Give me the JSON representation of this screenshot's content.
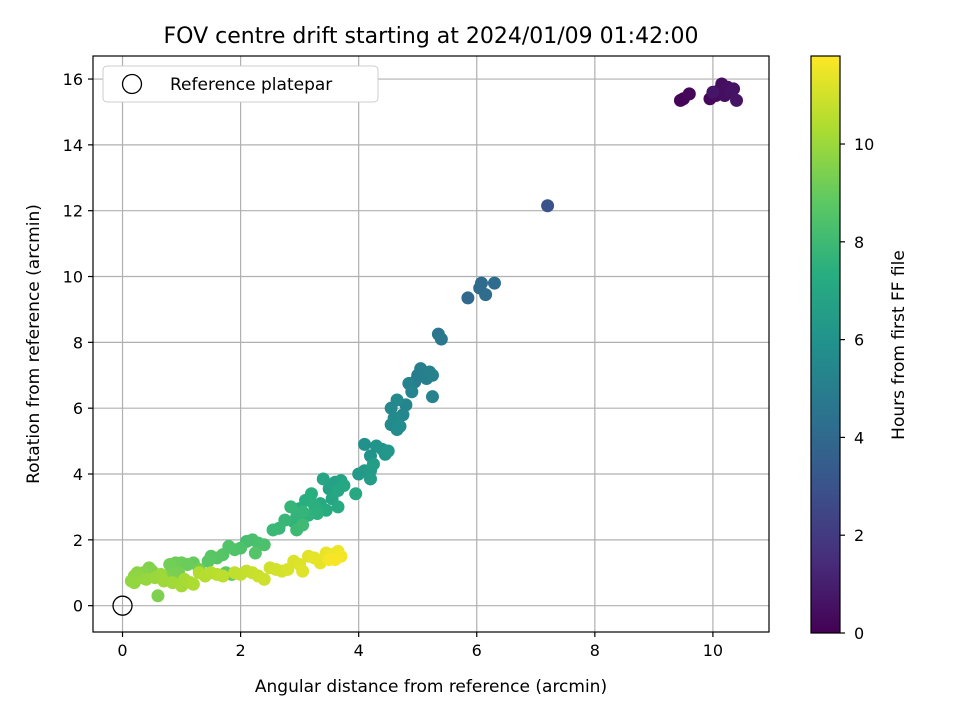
{
  "chart_data": {
    "type": "scatter",
    "title": "FOV centre drift starting at 2024/01/09 01:42:00",
    "xlabel": "Angular distance from reference (arcmin)",
    "ylabel": "Rotation from reference (arcmin)",
    "xlim": [
      -0.5,
      10.95
    ],
    "ylim": [
      -0.8,
      16.7
    ],
    "xticks": [
      0,
      2,
      4,
      6,
      8,
      10
    ],
    "yticks": [
      0,
      2,
      4,
      6,
      8,
      10,
      12,
      14,
      16
    ],
    "grid": true,
    "legend": {
      "position": "top-left",
      "entries": [
        "Reference platepar"
      ]
    },
    "reference_point": {
      "x": 0,
      "y": 0,
      "label": "Reference platepar",
      "marker": "hollow-circle"
    },
    "colorbar": {
      "label": "Hours from first FF file",
      "colormap": "viridis",
      "range": [
        0,
        11.8
      ],
      "ticks": [
        0,
        2,
        4,
        6,
        8,
        10
      ]
    },
    "points": [
      {
        "x": 9.45,
        "y": 15.35,
        "h": 0.1
      },
      {
        "x": 9.5,
        "y": 15.4,
        "h": 0.15
      },
      {
        "x": 9.6,
        "y": 15.55,
        "h": 0.2
      },
      {
        "x": 9.95,
        "y": 15.4,
        "h": 0.25
      },
      {
        "x": 10.05,
        "y": 15.5,
        "h": 0.3
      },
      {
        "x": 10.1,
        "y": 15.65,
        "h": 0.35
      },
      {
        "x": 10.15,
        "y": 15.85,
        "h": 0.4
      },
      {
        "x": 10.2,
        "y": 15.5,
        "h": 0.45
      },
      {
        "x": 10.25,
        "y": 15.75,
        "h": 0.5
      },
      {
        "x": 10.3,
        "y": 15.6,
        "h": 0.55
      },
      {
        "x": 10.35,
        "y": 15.7,
        "h": 0.6
      },
      {
        "x": 10.4,
        "y": 15.35,
        "h": 0.65
      },
      {
        "x": 10.0,
        "y": 15.6,
        "h": 0.7
      },
      {
        "x": 7.2,
        "y": 12.15,
        "h": 3.0
      },
      {
        "x": 5.85,
        "y": 9.35,
        "h": 4.0
      },
      {
        "x": 6.05,
        "y": 9.65,
        "h": 4.05
      },
      {
        "x": 6.08,
        "y": 9.8,
        "h": 4.1
      },
      {
        "x": 6.15,
        "y": 9.45,
        "h": 4.15
      },
      {
        "x": 6.3,
        "y": 9.8,
        "h": 4.2
      },
      {
        "x": 5.35,
        "y": 8.25,
        "h": 4.6
      },
      {
        "x": 5.4,
        "y": 8.1,
        "h": 4.65
      },
      {
        "x": 4.95,
        "y": 6.8,
        "h": 4.9
      },
      {
        "x": 5.0,
        "y": 7.0,
        "h": 4.95
      },
      {
        "x": 5.05,
        "y": 7.2,
        "h": 5.0
      },
      {
        "x": 5.15,
        "y": 6.9,
        "h": 5.05
      },
      {
        "x": 5.2,
        "y": 7.1,
        "h": 5.1
      },
      {
        "x": 5.25,
        "y": 7.0,
        "h": 5.15
      },
      {
        "x": 5.25,
        "y": 6.35,
        "h": 5.2
      },
      {
        "x": 4.85,
        "y": 6.75,
        "h": 5.25
      },
      {
        "x": 4.9,
        "y": 6.5,
        "h": 5.3
      },
      {
        "x": 4.8,
        "y": 6.1,
        "h": 5.35
      },
      {
        "x": 4.75,
        "y": 5.8,
        "h": 5.4
      },
      {
        "x": 4.55,
        "y": 6.0,
        "h": 5.45
      },
      {
        "x": 4.65,
        "y": 6.25,
        "h": 5.5
      },
      {
        "x": 4.55,
        "y": 5.5,
        "h": 5.55
      },
      {
        "x": 4.6,
        "y": 5.7,
        "h": 5.6
      },
      {
        "x": 4.65,
        "y": 5.35,
        "h": 5.65
      },
      {
        "x": 4.7,
        "y": 5.45,
        "h": 5.7
      },
      {
        "x": 4.1,
        "y": 4.9,
        "h": 5.9
      },
      {
        "x": 4.2,
        "y": 4.55,
        "h": 6.0
      },
      {
        "x": 4.3,
        "y": 4.85,
        "h": 6.05
      },
      {
        "x": 4.4,
        "y": 4.75,
        "h": 6.1
      },
      {
        "x": 4.45,
        "y": 4.6,
        "h": 6.15
      },
      {
        "x": 4.5,
        "y": 4.7,
        "h": 6.2
      },
      {
        "x": 4.0,
        "y": 4.0,
        "h": 6.3
      },
      {
        "x": 4.1,
        "y": 4.1,
        "h": 6.35
      },
      {
        "x": 4.2,
        "y": 4.1,
        "h": 6.4
      },
      {
        "x": 4.2,
        "y": 3.85,
        "h": 6.45
      },
      {
        "x": 4.25,
        "y": 4.3,
        "h": 6.5
      },
      {
        "x": 3.5,
        "y": 3.55,
        "h": 6.7
      },
      {
        "x": 3.6,
        "y": 3.75,
        "h": 6.75
      },
      {
        "x": 3.7,
        "y": 3.8,
        "h": 6.8
      },
      {
        "x": 3.4,
        "y": 3.85,
        "h": 6.85
      },
      {
        "x": 3.55,
        "y": 3.25,
        "h": 6.9
      },
      {
        "x": 3.65,
        "y": 3.5,
        "h": 6.95
      },
      {
        "x": 3.75,
        "y": 3.65,
        "h": 7.0
      },
      {
        "x": 3.95,
        "y": 3.4,
        "h": 7.05
      },
      {
        "x": 3.65,
        "y": 3.0,
        "h": 7.1
      },
      {
        "x": 3.35,
        "y": 3.1,
        "h": 7.15
      },
      {
        "x": 3.45,
        "y": 2.9,
        "h": 7.2
      },
      {
        "x": 3.0,
        "y": 2.95,
        "h": 7.3
      },
      {
        "x": 3.1,
        "y": 3.2,
        "h": 7.35
      },
      {
        "x": 3.2,
        "y": 3.4,
        "h": 7.4
      },
      {
        "x": 3.25,
        "y": 3.05,
        "h": 7.45
      },
      {
        "x": 3.3,
        "y": 2.8,
        "h": 7.5
      },
      {
        "x": 3.15,
        "y": 2.75,
        "h": 7.55
      },
      {
        "x": 2.9,
        "y": 2.55,
        "h": 7.6
      },
      {
        "x": 2.95,
        "y": 2.7,
        "h": 7.65
      },
      {
        "x": 3.05,
        "y": 2.85,
        "h": 7.7
      },
      {
        "x": 2.85,
        "y": 3.0,
        "h": 7.75
      },
      {
        "x": 2.75,
        "y": 2.6,
        "h": 7.8
      },
      {
        "x": 2.65,
        "y": 2.35,
        "h": 7.85
      },
      {
        "x": 2.55,
        "y": 2.3,
        "h": 7.9
      },
      {
        "x": 2.95,
        "y": 2.3,
        "h": 7.95
      },
      {
        "x": 3.05,
        "y": 2.45,
        "h": 8.0
      },
      {
        "x": 2.1,
        "y": 1.95,
        "h": 8.2
      },
      {
        "x": 2.2,
        "y": 2.0,
        "h": 8.25
      },
      {
        "x": 2.3,
        "y": 1.9,
        "h": 8.3
      },
      {
        "x": 2.4,
        "y": 1.85,
        "h": 8.35
      },
      {
        "x": 2.0,
        "y": 1.75,
        "h": 8.4
      },
      {
        "x": 1.9,
        "y": 1.7,
        "h": 8.45
      },
      {
        "x": 1.8,
        "y": 1.8,
        "h": 8.5
      },
      {
        "x": 2.25,
        "y": 1.6,
        "h": 8.55
      },
      {
        "x": 1.7,
        "y": 1.55,
        "h": 8.6
      },
      {
        "x": 1.6,
        "y": 1.45,
        "h": 8.65
      },
      {
        "x": 1.5,
        "y": 1.5,
        "h": 8.7
      },
      {
        "x": 1.45,
        "y": 1.35,
        "h": 8.75
      },
      {
        "x": 1.75,
        "y": 1.0,
        "h": 8.8
      },
      {
        "x": 1.85,
        "y": 0.95,
        "h": 8.85
      },
      {
        "x": 1.2,
        "y": 1.3,
        "h": 9.0
      },
      {
        "x": 1.1,
        "y": 1.25,
        "h": 9.05
      },
      {
        "x": 1.0,
        "y": 1.3,
        "h": 9.1
      },
      {
        "x": 0.9,
        "y": 1.3,
        "h": 9.15
      },
      {
        "x": 0.8,
        "y": 1.25,
        "h": 9.2
      },
      {
        "x": 1.3,
        "y": 1.1,
        "h": 9.25
      },
      {
        "x": 0.95,
        "y": 1.0,
        "h": 9.3
      },
      {
        "x": 0.85,
        "y": 0.95,
        "h": 9.35
      },
      {
        "x": 0.75,
        "y": 0.9,
        "h": 9.4
      },
      {
        "x": 0.6,
        "y": 0.3,
        "h": 9.45
      },
      {
        "x": 0.45,
        "y": 1.15,
        "h": 9.5
      },
      {
        "x": 0.5,
        "y": 1.05,
        "h": 9.55
      },
      {
        "x": 0.35,
        "y": 1.0,
        "h": 9.6
      },
      {
        "x": 0.3,
        "y": 0.85,
        "h": 9.65
      },
      {
        "x": 0.25,
        "y": 1.0,
        "h": 9.7
      },
      {
        "x": 0.2,
        "y": 0.9,
        "h": 9.75
      },
      {
        "x": 0.15,
        "y": 0.75,
        "h": 9.8
      },
      {
        "x": 0.2,
        "y": 0.7,
        "h": 9.85
      },
      {
        "x": 0.4,
        "y": 0.8,
        "h": 9.9
      },
      {
        "x": 0.55,
        "y": 0.85,
        "h": 9.95
      },
      {
        "x": 0.65,
        "y": 0.95,
        "h": 10.0
      },
      {
        "x": 0.7,
        "y": 0.75,
        "h": 10.05
      },
      {
        "x": 0.85,
        "y": 0.7,
        "h": 10.1
      },
      {
        "x": 1.0,
        "y": 0.6,
        "h": 10.15
      },
      {
        "x": 1.05,
        "y": 0.8,
        "h": 10.2
      },
      {
        "x": 1.15,
        "y": 0.7,
        "h": 10.25
      },
      {
        "x": 1.2,
        "y": 0.65,
        "h": 10.3
      },
      {
        "x": 1.3,
        "y": 1.0,
        "h": 10.4
      },
      {
        "x": 1.4,
        "y": 0.9,
        "h": 10.45
      },
      {
        "x": 1.5,
        "y": 1.0,
        "h": 10.5
      },
      {
        "x": 1.6,
        "y": 0.95,
        "h": 10.55
      },
      {
        "x": 1.7,
        "y": 0.9,
        "h": 10.6
      },
      {
        "x": 1.9,
        "y": 1.0,
        "h": 10.65
      },
      {
        "x": 2.0,
        "y": 0.95,
        "h": 10.7
      },
      {
        "x": 2.1,
        "y": 1.05,
        "h": 10.75
      },
      {
        "x": 2.2,
        "y": 1.0,
        "h": 10.8
      },
      {
        "x": 2.3,
        "y": 0.9,
        "h": 10.85
      },
      {
        "x": 2.4,
        "y": 0.8,
        "h": 10.9
      },
      {
        "x": 2.5,
        "y": 1.15,
        "h": 10.95
      },
      {
        "x": 2.6,
        "y": 1.1,
        "h": 11.0
      },
      {
        "x": 2.7,
        "y": 1.05,
        "h": 11.05
      },
      {
        "x": 2.8,
        "y": 1.1,
        "h": 11.1
      },
      {
        "x": 2.9,
        "y": 1.35,
        "h": 11.15
      },
      {
        "x": 3.0,
        "y": 1.25,
        "h": 11.2
      },
      {
        "x": 3.05,
        "y": 1.05,
        "h": 11.25
      },
      {
        "x": 3.15,
        "y": 1.5,
        "h": 11.3
      },
      {
        "x": 3.25,
        "y": 1.45,
        "h": 11.35
      },
      {
        "x": 3.35,
        "y": 1.3,
        "h": 11.4
      },
      {
        "x": 3.45,
        "y": 1.6,
        "h": 11.45
      },
      {
        "x": 3.55,
        "y": 1.55,
        "h": 11.5
      },
      {
        "x": 3.65,
        "y": 1.65,
        "h": 11.55
      },
      {
        "x": 3.7,
        "y": 1.5,
        "h": 11.6
      },
      {
        "x": 3.5,
        "y": 1.4,
        "h": 11.65
      },
      {
        "x": 3.6,
        "y": 1.4,
        "h": 11.7
      }
    ]
  }
}
